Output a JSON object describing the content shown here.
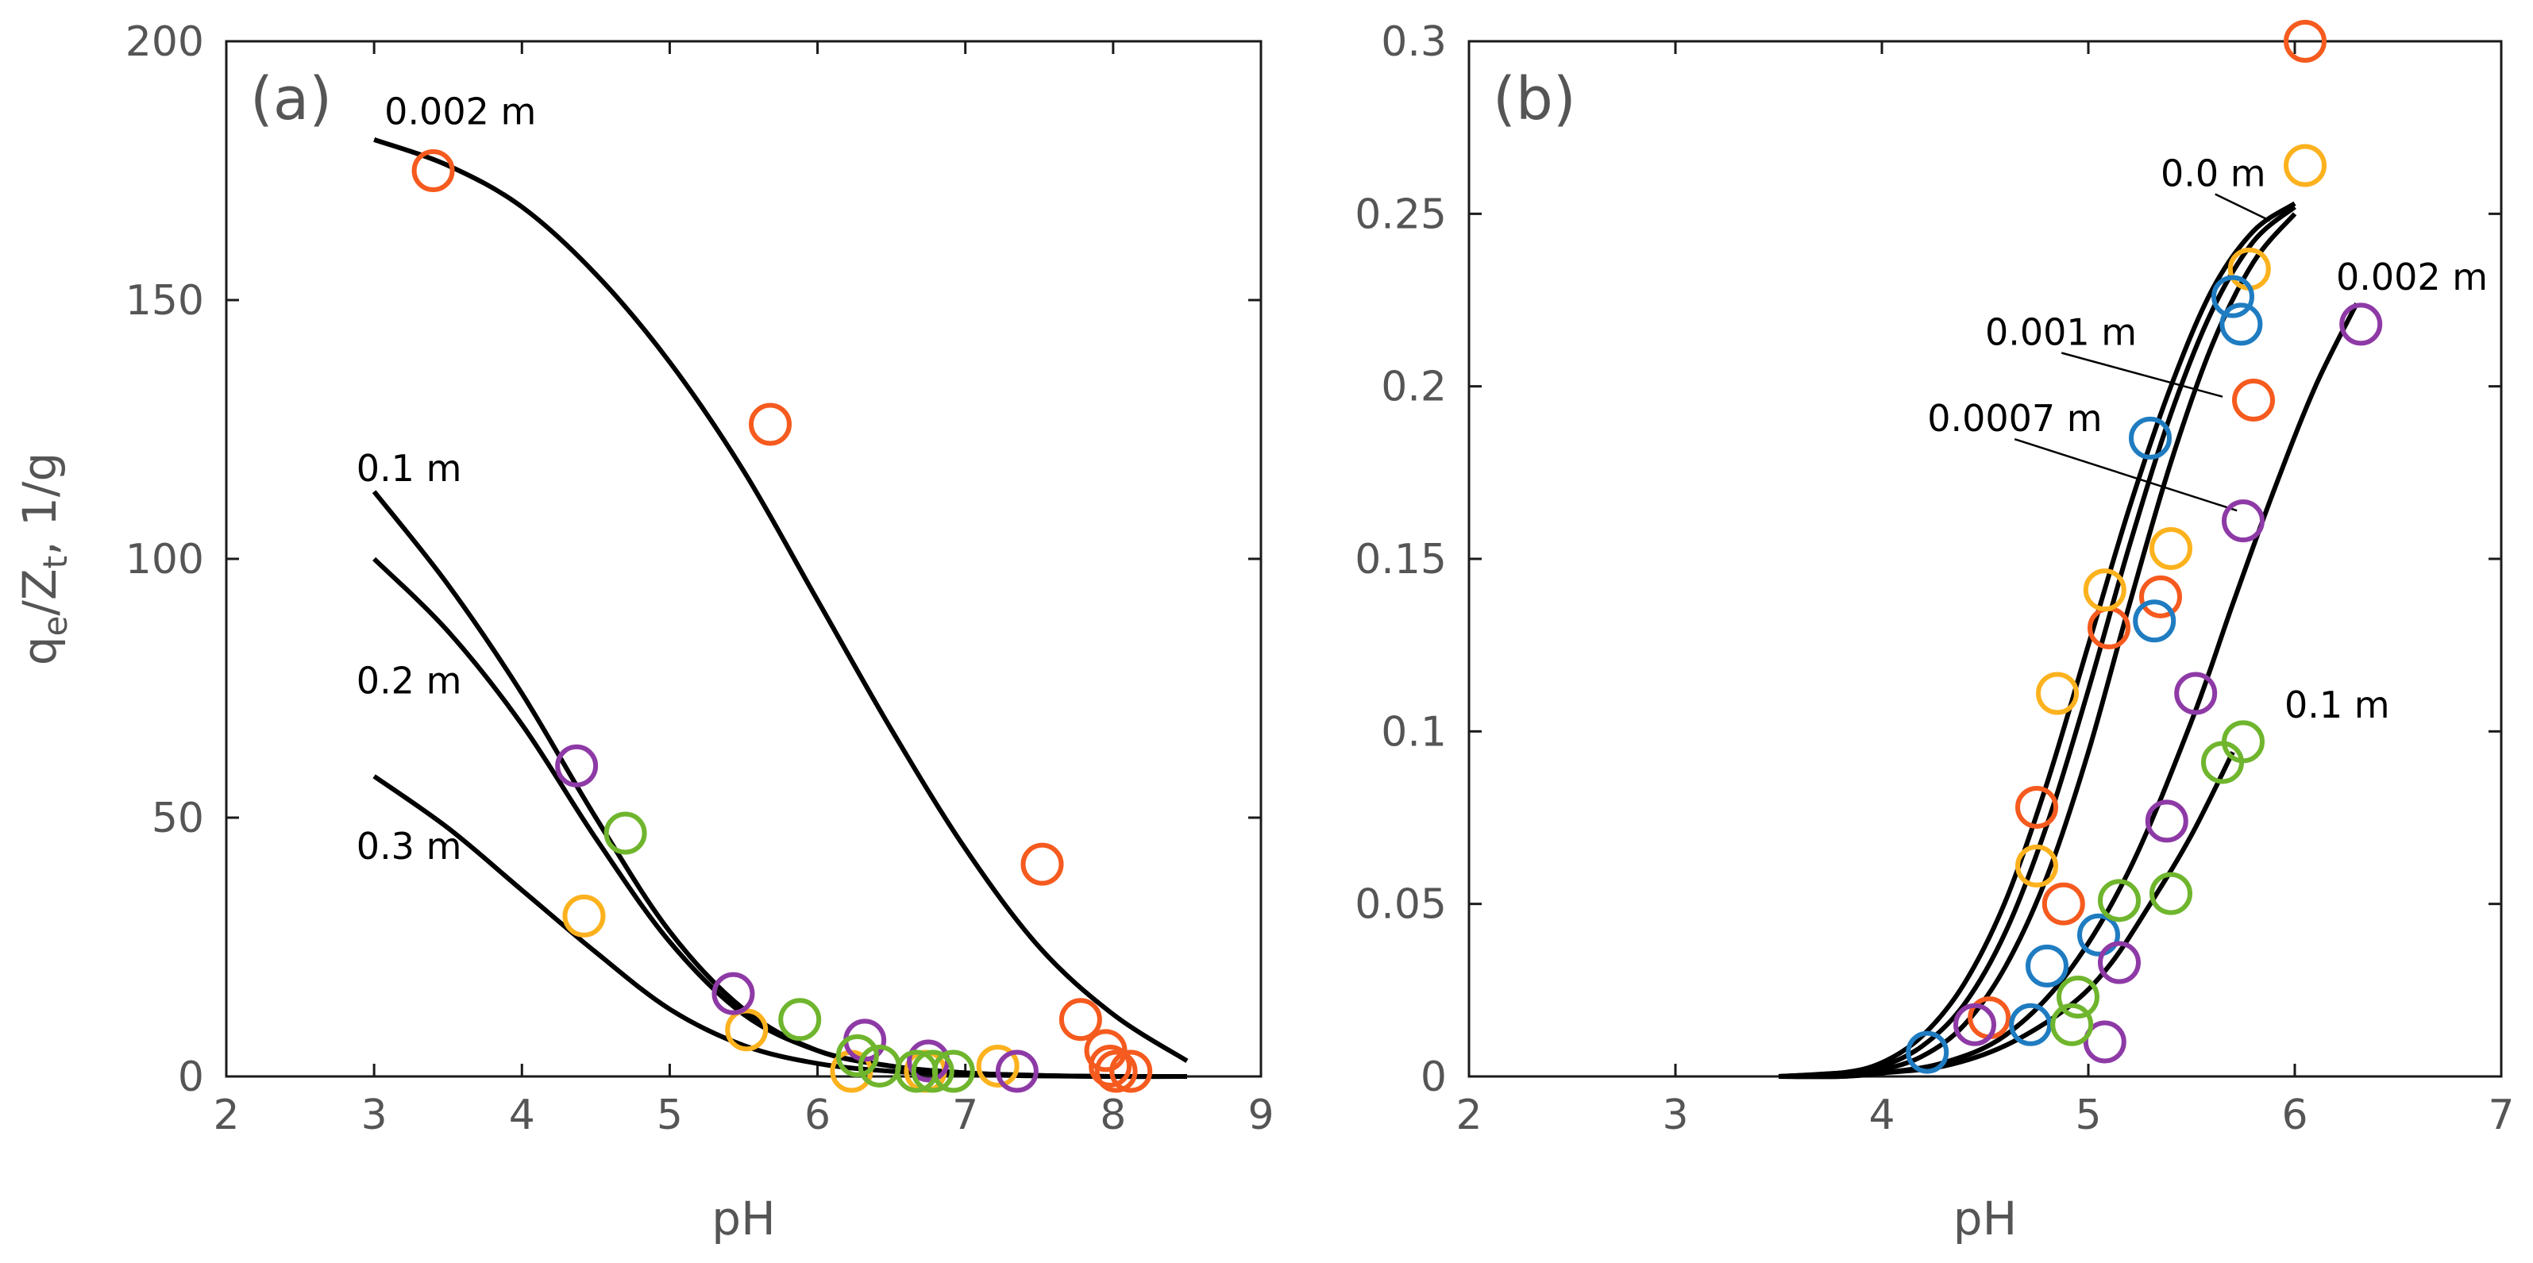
{
  "chart_data": [
    {
      "type": "scatter",
      "panel_label": "(a)",
      "xlabel": "pH",
      "ylabel": "q_e/Z_t, 1/g",
      "xlim": [
        2,
        9
      ],
      "ylim": [
        0,
        200
      ],
      "xticks": [
        2,
        3,
        4,
        5,
        6,
        7,
        8,
        9
      ],
      "yticks": [
        0,
        50,
        100,
        150,
        200
      ],
      "colors": {
        "orange": "#f55a1e",
        "yellow": "#fcb21e",
        "purple": "#8e3aa6",
        "green": "#6fb52d",
        "blue": "#1f7cc1"
      },
      "curves": [
        {
          "label": "0.002 m",
          "points": [
            [
              3.0,
              181
            ],
            [
              3.5,
              176
            ],
            [
              4.0,
              168
            ],
            [
              4.5,
              155
            ],
            [
              5.0,
              138
            ],
            [
              5.5,
              117
            ],
            [
              6.0,
              92
            ],
            [
              6.5,
              67
            ],
            [
              7.0,
              44
            ],
            [
              7.5,
              25
            ],
            [
              8.0,
              12
            ],
            [
              8.5,
              3
            ]
          ]
        },
        {
          "label": "0.1 m",
          "points": [
            [
              3.0,
              113
            ],
            [
              3.5,
              95
            ],
            [
              4.0,
              74
            ],
            [
              4.5,
              50
            ],
            [
              5.0,
              28
            ],
            [
              5.5,
              13
            ],
            [
              6.0,
              5
            ],
            [
              6.5,
              2
            ],
            [
              7.0,
              0.7
            ],
            [
              7.5,
              0.2
            ],
            [
              8.0,
              0
            ],
            [
              8.5,
              0
            ]
          ]
        },
        {
          "label": "0.2 m",
          "points": [
            [
              3.0,
              100
            ],
            [
              3.5,
              86
            ],
            [
              4.0,
              68
            ],
            [
              4.5,
              46
            ],
            [
              5.0,
              26
            ],
            [
              5.5,
              12
            ],
            [
              6.0,
              5
            ],
            [
              6.5,
              2
            ],
            [
              7.0,
              0.7
            ],
            [
              7.5,
              0.2
            ],
            [
              8.0,
              0
            ],
            [
              8.5,
              0
            ]
          ]
        },
        {
          "label": "0.3 m",
          "points": [
            [
              3.0,
              58
            ],
            [
              3.5,
              48
            ],
            [
              4.0,
              36
            ],
            [
              4.5,
              24
            ],
            [
              5.0,
              13
            ],
            [
              5.5,
              6
            ],
            [
              6.0,
              2.5
            ],
            [
              6.5,
              1
            ],
            [
              7.0,
              0.4
            ],
            [
              7.5,
              0.1
            ],
            [
              8.0,
              0
            ],
            [
              8.5,
              0
            ]
          ]
        }
      ],
      "curve_labels": [
        {
          "text": "0.002 m",
          "at": [
            3.07,
            184
          ]
        },
        {
          "text": "0.1 m",
          "at": [
            2.88,
            115
          ]
        },
        {
          "text": "0.2 m",
          "at": [
            2.88,
            74
          ]
        },
        {
          "text": "0.3 m",
          "at": [
            2.88,
            42
          ]
        }
      ],
      "series": [
        {
          "name": "orange",
          "color": "orange",
          "points": [
            [
              3.4,
              175
            ],
            [
              5.68,
              126
            ],
            [
              7.52,
              41
            ],
            [
              7.78,
              11
            ],
            [
              7.95,
              5
            ],
            [
              7.98,
              2
            ],
            [
              8.02,
              1
            ],
            [
              8.12,
              1
            ]
          ]
        },
        {
          "name": "yellow",
          "color": "yellow",
          "points": [
            [
              4.42,
              31
            ],
            [
              5.52,
              9
            ],
            [
              6.23,
              1
            ],
            [
              6.73,
              1
            ],
            [
              7.22,
              2
            ]
          ]
        },
        {
          "name": "purple",
          "color": "purple",
          "points": [
            [
              4.37,
              60
            ],
            [
              5.43,
              16
            ],
            [
              6.32,
              7
            ],
            [
              6.75,
              3
            ],
            [
              7.35,
              1
            ]
          ]
        },
        {
          "name": "green",
          "color": "green",
          "points": [
            [
              4.7,
              47
            ],
            [
              5.88,
              11
            ],
            [
              6.27,
              4
            ],
            [
              6.42,
              2
            ],
            [
              6.67,
              1
            ],
            [
              6.78,
              1
            ],
            [
              6.92,
              1
            ]
          ]
        }
      ]
    },
    {
      "type": "scatter",
      "panel_label": "(b)",
      "xlabel": "pH",
      "ylabel": "",
      "xlim": [
        2,
        7
      ],
      "ylim": [
        0,
        0.3
      ],
      "xticks": [
        2,
        3,
        4,
        5,
        6,
        7
      ],
      "yticks": [
        0,
        0.05,
        0.1,
        0.15,
        0.2,
        0.25,
        0.3
      ],
      "colors": {
        "orange": "#f55a1e",
        "yellow": "#fcb21e",
        "purple": "#8e3aa6",
        "green": "#6fb52d",
        "blue": "#1f7cc1"
      },
      "curves": [
        {
          "label": "0.0 m",
          "points": [
            [
              3.5,
              0
            ],
            [
              3.8,
              0.001
            ],
            [
              4.0,
              0.004
            ],
            [
              4.2,
              0.012
            ],
            [
              4.4,
              0.027
            ],
            [
              4.6,
              0.051
            ],
            [
              4.8,
              0.085
            ],
            [
              5.0,
              0.125
            ],
            [
              5.2,
              0.165
            ],
            [
              5.4,
              0.2
            ],
            [
              5.6,
              0.228
            ],
            [
              5.8,
              0.245
            ],
            [
              6.0,
              0.253
            ]
          ]
        },
        {
          "label": "0.001 m",
          "points": [
            [
              3.5,
              0
            ],
            [
              3.8,
              0.001
            ],
            [
              4.0,
              0.003
            ],
            [
              4.2,
              0.009
            ],
            [
              4.4,
              0.021
            ],
            [
              4.6,
              0.042
            ],
            [
              4.8,
              0.073
            ],
            [
              5.0,
              0.112
            ],
            [
              5.2,
              0.154
            ],
            [
              5.4,
              0.192
            ],
            [
              5.6,
              0.222
            ],
            [
              5.8,
              0.242
            ],
            [
              6.0,
              0.252
            ]
          ]
        },
        {
          "label": "0.0007 m",
          "points": [
            [
              3.5,
              0
            ],
            [
              3.8,
              0.001
            ],
            [
              4.0,
              0.002
            ],
            [
              4.2,
              0.006
            ],
            [
              4.4,
              0.015
            ],
            [
              4.6,
              0.032
            ],
            [
              4.8,
              0.058
            ],
            [
              5.0,
              0.094
            ],
            [
              5.2,
              0.137
            ],
            [
              5.4,
              0.178
            ],
            [
              5.6,
              0.212
            ],
            [
              5.8,
              0.236
            ],
            [
              6.0,
              0.25
            ]
          ]
        },
        {
          "label": "0.002 m",
          "points": [
            [
              3.5,
              0
            ],
            [
              3.8,
              0
            ],
            [
              4.0,
              0.001
            ],
            [
              4.3,
              0.004
            ],
            [
              4.6,
              0.012
            ],
            [
              4.9,
              0.03
            ],
            [
              5.2,
              0.06
            ],
            [
              5.5,
              0.103
            ],
            [
              5.7,
              0.137
            ],
            [
              5.9,
              0.17
            ],
            [
              6.1,
              0.2
            ],
            [
              6.3,
              0.224
            ]
          ]
        },
        {
          "label": "0.1 m",
          "points": [
            [
              3.5,
              0
            ],
            [
              3.8,
              0
            ],
            [
              4.0,
              0.001
            ],
            [
              4.3,
              0.003
            ],
            [
              4.6,
              0.009
            ],
            [
              4.9,
              0.02
            ],
            [
              5.1,
              0.032
            ],
            [
              5.3,
              0.05
            ],
            [
              5.5,
              0.07
            ],
            [
              5.7,
              0.094
            ]
          ]
        }
      ],
      "curve_labels": [
        {
          "text": "0.0 m",
          "at": [
            5.35,
            0.258
          ],
          "leader_to": [
            5.88,
            0.248
          ]
        },
        {
          "text": "0.001 m",
          "at": [
            4.5,
            0.212
          ],
          "leader_to": [
            5.65,
            0.197
          ]
        },
        {
          "text": "0.0007 m",
          "at": [
            4.22,
            0.187
          ],
          "leader_to": [
            5.72,
            0.164
          ]
        },
        {
          "text": "0.002 m",
          "at": [
            6.2,
            0.228
          ]
        },
        {
          "text": "0.1 m",
          "at": [
            5.95,
            0.104
          ]
        }
      ],
      "series": [
        {
          "name": "orange",
          "color": "orange",
          "points": [
            [
              6.05,
              0.3
            ],
            [
              5.8,
              0.196
            ],
            [
              5.35,
              0.139
            ],
            [
              5.1,
              0.13
            ],
            [
              4.88,
              0.05
            ],
            [
              4.75,
              0.078
            ],
            [
              4.52,
              0.017
            ]
          ]
        },
        {
          "name": "yellow",
          "color": "yellow",
          "points": [
            [
              6.05,
              0.264
            ],
            [
              5.78,
              0.234
            ],
            [
              5.4,
              0.153
            ],
            [
              5.08,
              0.141
            ],
            [
              4.85,
              0.111
            ],
            [
              4.75,
              0.061
            ]
          ]
        },
        {
          "name": "blue",
          "color": "blue",
          "points": [
            [
              5.7,
              0.226
            ],
            [
              5.74,
              0.218
            ],
            [
              5.3,
              0.185
            ],
            [
              5.32,
              0.132
            ],
            [
              5.05,
              0.041
            ],
            [
              4.8,
              0.032
            ],
            [
              4.72,
              0.015
            ],
            [
              4.22,
              0.007
            ]
          ]
        },
        {
          "name": "purple",
          "color": "purple",
          "points": [
            [
              6.32,
              0.218
            ],
            [
              5.75,
              0.161
            ],
            [
              5.52,
              0.111
            ],
            [
              5.38,
              0.074
            ],
            [
              5.15,
              0.033
            ],
            [
              5.08,
              0.01
            ],
            [
              4.45,
              0.015
            ]
          ]
        },
        {
          "name": "green",
          "color": "green",
          "points": [
            [
              5.75,
              0.097
            ],
            [
              5.65,
              0.091
            ],
            [
              5.4,
              0.053
            ],
            [
              5.15,
              0.051
            ],
            [
              4.95,
              0.023
            ],
            [
              4.92,
              0.015
            ]
          ]
        }
      ]
    }
  ]
}
